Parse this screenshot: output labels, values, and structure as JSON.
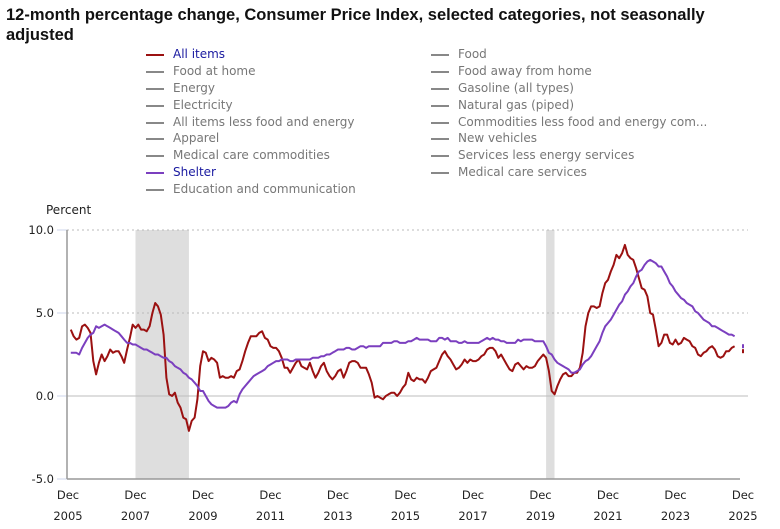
{
  "title": "12-month percentage change, Consumer Price Index, selected categories, not seasonally adjusted",
  "legend": {
    "left": [
      {
        "label": "All items",
        "active": true,
        "color": "#9b1111"
      },
      {
        "label": "Food at home",
        "active": false,
        "color": "#888888"
      },
      {
        "label": "Energy",
        "active": false,
        "color": "#888888"
      },
      {
        "label": "Electricity",
        "active": false,
        "color": "#888888"
      },
      {
        "label": "All items less food and energy",
        "active": false,
        "color": "#888888"
      },
      {
        "label": "Apparel",
        "active": false,
        "color": "#888888"
      },
      {
        "label": "Medical care commodities",
        "active": false,
        "color": "#888888"
      },
      {
        "label": "Shelter",
        "active": true,
        "color": "#7b3fbf"
      },
      {
        "label": "Education and communication",
        "active": false,
        "color": "#888888"
      }
    ],
    "right": [
      {
        "label": "Food",
        "active": false,
        "color": "#888888"
      },
      {
        "label": "Food away from home",
        "active": false,
        "color": "#888888"
      },
      {
        "label": "Gasoline (all types)",
        "active": false,
        "color": "#888888"
      },
      {
        "label": "Natural gas (piped)",
        "active": false,
        "color": "#888888"
      },
      {
        "label": "Commodities less food and energy com...",
        "active": false,
        "color": "#888888"
      },
      {
        "label": "New vehicles",
        "active": false,
        "color": "#888888"
      },
      {
        "label": "Services less energy services",
        "active": false,
        "color": "#888888"
      },
      {
        "label": "Medical care services",
        "active": false,
        "color": "#888888"
      }
    ]
  },
  "chart_data": {
    "type": "line",
    "title": "12-month percentage change, Consumer Price Index, selected categories, not seasonally adjusted",
    "ylabel": "Percent",
    "xlabel": "",
    "ylim": [
      -5.0,
      10.0
    ],
    "yticks": [
      {
        "value": 10.0,
        "label": "10.0"
      },
      {
        "value": 5.0,
        "label": "5.0"
      },
      {
        "value": 0.0,
        "label": "0.0"
      },
      {
        "value": -5.0,
        "label": "-5.0"
      }
    ],
    "xrange": [
      "2006-01",
      "2025-09"
    ],
    "xticks": [
      {
        "month": "Dec",
        "year": "2005",
        "date": 2005.917
      },
      {
        "month": "Dec",
        "year": "2007",
        "date": 2007.917
      },
      {
        "month": "Dec",
        "year": "2009",
        "date": 2009.917
      },
      {
        "month": "Dec",
        "year": "2011",
        "date": 2011.917
      },
      {
        "month": "Dec",
        "year": "2013",
        "date": 2013.917
      },
      {
        "month": "Dec",
        "year": "2015",
        "date": 2015.917
      },
      {
        "month": "Dec",
        "year": "2017",
        "date": 2017.917
      },
      {
        "month": "Dec",
        "year": "2019",
        "date": 2019.917
      },
      {
        "month": "Dec",
        "year": "2021",
        "date": 2021.917
      },
      {
        "month": "Dec",
        "year": "2023",
        "date": 2023.917
      },
      {
        "month": "Dec",
        "year": "2025",
        "date": 2025.917
      }
    ],
    "grid": "horizontal dotted",
    "recessions": [
      {
        "start": 2007.917,
        "end": 2009.5
      },
      {
        "start": 2020.083,
        "end": 2020.333
      }
    ],
    "series": [
      {
        "name": "All items",
        "color": "#9b1111",
        "start": 2006.0,
        "step_months": 1,
        "values": [
          4.0,
          3.6,
          3.4,
          3.5,
          4.2,
          4.3,
          4.1,
          3.8,
          2.1,
          1.3,
          2.0,
          2.5,
          2.1,
          2.4,
          2.8,
          2.6,
          2.7,
          2.7,
          2.4,
          2.0,
          2.8,
          3.5,
          4.3,
          4.1,
          4.3,
          4.0,
          4.0,
          3.9,
          4.2,
          5.0,
          5.6,
          5.4,
          4.9,
          3.7,
          1.1,
          0.1,
          0.0,
          0.2,
          -0.4,
          -0.7,
          -1.3,
          -1.4,
          -2.1,
          -1.5,
          -1.3,
          -0.2,
          1.8,
          2.7,
          2.6,
          2.1,
          2.3,
          2.2,
          2.0,
          1.1,
          1.2,
          1.1,
          1.1,
          1.2,
          1.1,
          1.5,
          1.6,
          2.1,
          2.7,
          3.2,
          3.6,
          3.6,
          3.6,
          3.8,
          3.9,
          3.5,
          3.4,
          3.0,
          2.9,
          2.9,
          2.7,
          2.3,
          1.7,
          1.7,
          1.4,
          1.7,
          2.0,
          2.2,
          1.8,
          1.7,
          1.6,
          2.0,
          1.5,
          1.1,
          1.4,
          1.8,
          2.0,
          1.5,
          1.2,
          1.0,
          1.2,
          1.5,
          1.6,
          1.1,
          1.5,
          2.0,
          2.1,
          2.1,
          2.0,
          1.7,
          1.7,
          1.7,
          1.3,
          0.8,
          -0.1,
          0.0,
          -0.1,
          -0.2,
          0.0,
          0.1,
          0.2,
          0.2,
          0.0,
          0.2,
          0.5,
          0.7,
          1.4,
          1.0,
          0.9,
          1.1,
          1.0,
          1.0,
          0.8,
          1.1,
          1.5,
          1.6,
          1.7,
          2.1,
          2.5,
          2.7,
          2.4,
          2.2,
          1.9,
          1.6,
          1.7,
          1.9,
          2.2,
          2.0,
          2.2,
          2.1,
          2.1,
          2.2,
          2.4,
          2.5,
          2.8,
          2.9,
          2.9,
          2.7,
          2.3,
          2.5,
          2.2,
          1.9,
          1.6,
          1.5,
          1.9,
          2.0,
          1.8,
          1.6,
          1.8,
          1.7,
          1.7,
          1.8,
          2.1,
          2.3,
          2.5,
          2.3,
          1.5,
          0.3,
          0.1,
          0.6,
          1.0,
          1.3,
          1.4,
          1.2,
          1.2,
          1.4,
          1.4,
          1.7,
          2.6,
          4.2,
          5.0,
          5.4,
          5.4,
          5.3,
          5.4,
          6.2,
          6.8,
          7.0,
          7.5,
          7.9,
          8.5,
          8.3,
          8.6,
          9.1,
          8.5,
          8.3,
          8.2,
          7.7,
          7.1,
          6.5,
          6.4,
          6.0,
          5.0,
          4.9,
          4.0,
          3.0,
          3.2,
          3.7,
          3.7,
          3.2,
          3.1,
          3.4,
          3.1,
          3.2,
          3.5,
          3.4,
          3.3,
          3.0,
          2.9,
          2.5,
          2.4,
          2.6,
          2.7,
          2.9,
          3.0,
          2.8,
          2.4,
          2.3,
          2.4,
          2.7,
          2.7,
          2.9,
          3.0
        ],
        "last_point": {
          "date": 2025.917,
          "value": 2.7
        }
      },
      {
        "name": "Shelter",
        "color": "#7b3fbf",
        "start": 2006.0,
        "step_months": 1,
        "values": [
          2.6,
          2.6,
          2.6,
          2.5,
          2.9,
          3.2,
          3.5,
          3.7,
          3.8,
          4.2,
          4.1,
          4.2,
          4.3,
          4.2,
          4.1,
          4.0,
          3.9,
          3.8,
          3.6,
          3.4,
          3.2,
          3.2,
          3.1,
          3.1,
          3.0,
          2.9,
          2.8,
          2.8,
          2.7,
          2.6,
          2.5,
          2.5,
          2.4,
          2.3,
          2.3,
          2.1,
          2.0,
          1.8,
          1.7,
          1.6,
          1.4,
          1.3,
          1.1,
          1.0,
          0.8,
          0.6,
          0.3,
          0.3,
          0.0,
          -0.3,
          -0.5,
          -0.6,
          -0.7,
          -0.7,
          -0.7,
          -0.7,
          -0.6,
          -0.4,
          -0.3,
          -0.4,
          0.1,
          0.4,
          0.6,
          0.8,
          1.0,
          1.2,
          1.3,
          1.4,
          1.5,
          1.6,
          1.8,
          1.9,
          2.0,
          2.1,
          2.1,
          2.2,
          2.2,
          2.2,
          2.1,
          2.1,
          2.2,
          2.2,
          2.2,
          2.2,
          2.2,
          2.2,
          2.3,
          2.3,
          2.3,
          2.4,
          2.4,
          2.5,
          2.5,
          2.6,
          2.7,
          2.8,
          2.8,
          2.8,
          2.9,
          2.9,
          2.8,
          2.8,
          2.9,
          3.0,
          3.0,
          2.9,
          3.0,
          3.0,
          3.0,
          3.0,
          3.0,
          3.2,
          3.2,
          3.2,
          3.2,
          3.3,
          3.3,
          3.2,
          3.2,
          3.2,
          3.3,
          3.3,
          3.4,
          3.5,
          3.4,
          3.4,
          3.4,
          3.4,
          3.3,
          3.3,
          3.3,
          3.5,
          3.5,
          3.4,
          3.5,
          3.3,
          3.3,
          3.3,
          3.2,
          3.2,
          3.3,
          3.2,
          3.2,
          3.2,
          3.2,
          3.2,
          3.3,
          3.4,
          3.5,
          3.4,
          3.5,
          3.4,
          3.4,
          3.3,
          3.3,
          3.2,
          3.2,
          3.2,
          3.2,
          3.4,
          3.3,
          3.4,
          3.4,
          3.4,
          3.4,
          3.3,
          3.3,
          3.3,
          3.3,
          3.0,
          2.6,
          2.5,
          2.2,
          2.0,
          1.9,
          1.8,
          1.7,
          1.6,
          1.4,
          1.4,
          1.5,
          1.6,
          1.9,
          2.1,
          2.2,
          2.4,
          2.7,
          3.0,
          3.3,
          3.8,
          4.2,
          4.4,
          4.6,
          4.9,
          5.2,
          5.5,
          5.7,
          6.1,
          6.3,
          6.6,
          6.8,
          7.2,
          7.5,
          7.6,
          7.9,
          8.1,
          8.2,
          8.1,
          8.0,
          7.8,
          7.8,
          7.5,
          7.2,
          6.8,
          6.6,
          6.3,
          6.1,
          5.9,
          5.8,
          5.6,
          5.5,
          5.4,
          5.1,
          5.0,
          4.8,
          4.6,
          4.5,
          4.4,
          4.2,
          4.2,
          4.1,
          4.0,
          3.9,
          3.8,
          3.7,
          3.7,
          3.6
        ],
        "last_point": {
          "date": 2025.917,
          "value": 3.0
        }
      }
    ]
  }
}
